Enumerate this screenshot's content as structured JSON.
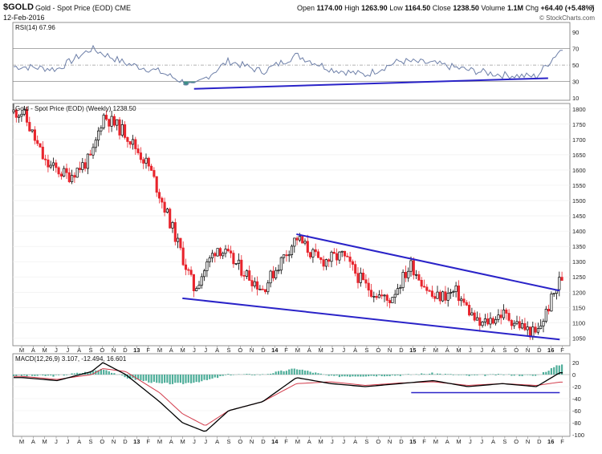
{
  "header": {
    "symbol": "$GOLD",
    "description": "Gold - Spot Price (EOD) CME",
    "date": "12-Feb-2016",
    "open_label": "Open",
    "open": "1174.00",
    "high_label": "High",
    "high": "1263.90",
    "low_label": "Low",
    "low": "1164.50",
    "close_label": "Close",
    "close": "1238.50",
    "volume_label": "Volume",
    "volume": "1.1M",
    "chg_label": "Chg",
    "chg": "+64.40 (+5.48%)",
    "credit": "© StockCharts.com",
    "collapse_icon": "triangle-down-icon"
  },
  "colors": {
    "down_candle": "#e8242d",
    "up_candle": "#000000",
    "trendline": "#2a23c8",
    "rsi_line": "#6d7fa8",
    "macd_line": "#000000",
    "signal_line": "#d23a4a",
    "histogram": "#4fae9a"
  },
  "months": [
    "M",
    "A",
    "M",
    "J",
    "J",
    "A",
    "S",
    "O",
    "N",
    "D",
    "13",
    "F",
    "M",
    "A",
    "M",
    "J",
    "J",
    "A",
    "S",
    "O",
    "N",
    "D",
    "14",
    "F",
    "M",
    "A",
    "M",
    "J",
    "J",
    "A",
    "S",
    "O",
    "N",
    "D",
    "15",
    "F",
    "M",
    "A",
    "M",
    "J",
    "J",
    "A",
    "S",
    "O",
    "N",
    "D",
    "16",
    "F"
  ],
  "chart_data": [
    {
      "type": "line",
      "indicator": "RSI",
      "legend": "RSI(14) 67.96",
      "ylim": [
        10,
        100
      ],
      "yticks": [
        90,
        70,
        50,
        30,
        10
      ],
      "reference_levels": [
        70,
        50,
        30
      ],
      "x": [
        "2012-03",
        "2012-06",
        "2012-09",
        "2012-12",
        "2013-03",
        "2013-06",
        "2013-09",
        "2013-12",
        "2014-03",
        "2014-06",
        "2014-09",
        "2014-12",
        "2015-03",
        "2015-06",
        "2015-09",
        "2015-12",
        "2016-02"
      ],
      "values": [
        48,
        45,
        70,
        52,
        42,
        24,
        55,
        42,
        62,
        45,
        38,
        55,
        52,
        44,
        38,
        36,
        68
      ],
      "current": 67.96,
      "trendline": {
        "from": [
          "2013-06",
          21
        ],
        "to": [
          "2016-01",
          34
        ]
      }
    },
    {
      "type": "candlestick",
      "title": "Gold - Spot Price (EOD) (Weekly) 1238.50",
      "ylim": [
        1030,
        1810
      ],
      "yticks": [
        1800,
        1750,
        1700,
        1650,
        1600,
        1550,
        1500,
        1450,
        1400,
        1350,
        1300,
        1250,
        1200,
        1150,
        1100,
        1050
      ],
      "x": [
        "2012-03",
        "2012-05",
        "2012-07",
        "2012-09",
        "2012-10",
        "2012-12",
        "2013-02",
        "2013-04",
        "2013-06",
        "2013-08",
        "2013-10",
        "2013-12",
        "2014-03",
        "2014-05",
        "2014-07",
        "2014-09",
        "2014-11",
        "2015-01",
        "2015-03",
        "2015-05",
        "2015-07",
        "2015-09",
        "2015-11",
        "2015-12",
        "2016-02"
      ],
      "close": [
        1790,
        1620,
        1580,
        1640,
        1780,
        1720,
        1610,
        1420,
        1210,
        1350,
        1280,
        1210,
        1380,
        1300,
        1320,
        1220,
        1170,
        1290,
        1180,
        1200,
        1090,
        1130,
        1080,
        1060,
        1238.5
      ],
      "last_close": 1238.5,
      "trendlines": [
        {
          "name": "upper",
          "from": [
            "2014-03",
            1390
          ],
          "to": [
            "2016-02",
            1205
          ]
        },
        {
          "name": "lower",
          "from": [
            "2013-05",
            1180
          ],
          "to": [
            "2016-02",
            1045
          ]
        }
      ]
    },
    {
      "type": "line",
      "indicator": "MACD",
      "legend": "MACD(12,26,9) 3.107, -12.494, 16.601",
      "ylim": [
        -100,
        20
      ],
      "yticks": [
        20,
        0,
        -20,
        -40,
        -60,
        -80,
        -100
      ],
      "x": [
        "2012-03",
        "2012-06",
        "2012-09",
        "2012-10",
        "2012-12",
        "2013-03",
        "2013-05",
        "2013-07",
        "2013-09",
        "2013-12",
        "2014-03",
        "2014-06",
        "2014-09",
        "2014-12",
        "2015-03",
        "2015-06",
        "2015-09",
        "2015-12",
        "2016-02"
      ],
      "series": [
        {
          "role": "macd",
          "values": [
            -5,
            -10,
            5,
            20,
            0,
            -45,
            -80,
            -95,
            -60,
            -45,
            -5,
            -15,
            -20,
            -15,
            -10,
            -20,
            -15,
            -20,
            3.107
          ]
        },
        {
          "role": "signal",
          "values": [
            -3,
            -8,
            0,
            10,
            5,
            -30,
            -65,
            -85,
            -60,
            -45,
            -15,
            -12,
            -18,
            -14,
            -12,
            -18,
            -15,
            -18,
            -12.494
          ]
        },
        {
          "role": "histogram",
          "values": [
            -2,
            -2,
            5,
            10,
            -5,
            -15,
            -15,
            -10,
            0,
            0,
            10,
            -3,
            -2,
            -1,
            2,
            -2,
            0,
            -2,
            16.601
          ]
        }
      ],
      "trendline": {
        "from": [
          "2015-01",
          -30
        ],
        "to": [
          "2016-02",
          -30
        ]
      }
    }
  ]
}
